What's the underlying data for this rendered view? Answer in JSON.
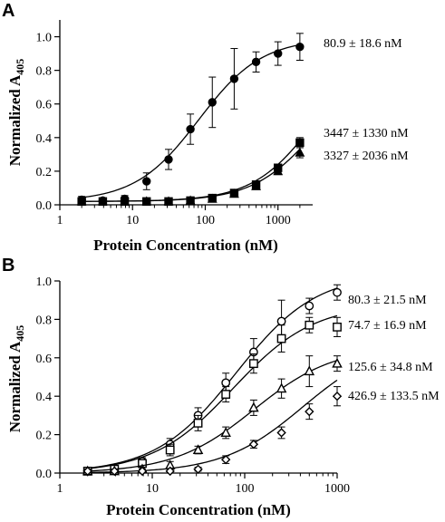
{
  "chart_data": [
    {
      "panel": "A",
      "type": "scatter",
      "xscale": "log",
      "xlim": [
        1,
        3000
      ],
      "ylim": [
        0,
        1.1
      ],
      "xticks": [
        "1",
        "10",
        "100",
        "1000"
      ],
      "yticks": [
        "0.0",
        "0.2",
        "0.4",
        "0.6",
        "0.8",
        "1.0"
      ],
      "xlabel": "Protein Concentration (nM)",
      "ylabel": "Normalized A",
      "ylabel_sub": "405",
      "series": [
        {
          "marker": "filled-circle",
          "x": [
            2,
            3.9,
            7.8,
            15.6,
            31.3,
            62.5,
            125,
            250,
            500,
            1000,
            2000
          ],
          "y": [
            0.03,
            0.025,
            0.035,
            0.14,
            0.27,
            0.45,
            0.61,
            0.75,
            0.85,
            0.9,
            0.94
          ],
          "err": [
            0.02,
            0.01,
            0.02,
            0.05,
            0.06,
            0.09,
            0.15,
            0.18,
            0.06,
            0.07,
            0.08
          ],
          "fit": {
            "kd": 80.9,
            "top": 0.99,
            "bottom": 0.02
          },
          "annotation": "80.9 ± 18.6 nM"
        },
        {
          "marker": "filled-square",
          "x": [
            2,
            3.9,
            7.8,
            15.6,
            31.3,
            62.5,
            125,
            250,
            500,
            1000,
            2000
          ],
          "y": [
            0.02,
            0.02,
            0.02,
            0.02,
            0.02,
            0.025,
            0.04,
            0.07,
            0.12,
            0.22,
            0.37
          ],
          "err": [
            0.01,
            0.01,
            0.01,
            0.01,
            0.01,
            0.01,
            0.01,
            0.01,
            0.015,
            0.02,
            0.03
          ],
          "fit": {
            "kd": 3447,
            "top": 1.0,
            "bottom": 0.02
          },
          "annotation": "3447 ± 1330 nM"
        },
        {
          "marker": "filled-triangle",
          "x": [
            2,
            3.9,
            7.8,
            15.6,
            31.3,
            62.5,
            125,
            250,
            500,
            1000,
            2000
          ],
          "y": [
            0.02,
            0.02,
            0.02,
            0.02,
            0.02,
            0.025,
            0.035,
            0.065,
            0.11,
            0.2,
            0.31
          ],
          "err": [
            0.01,
            0.01,
            0.01,
            0.01,
            0.01,
            0.01,
            0.01,
            0.01,
            0.015,
            0.02,
            0.03
          ],
          "fit": {
            "kd": 3327,
            "top": 0.85,
            "bottom": 0.02
          },
          "annotation": "3327 ± 2036 nM"
        }
      ]
    },
    {
      "panel": "B",
      "type": "scatter",
      "xscale": "log",
      "xlim": [
        1,
        1000
      ],
      "ylim": [
        0,
        1.0
      ],
      "xticks": [
        "1",
        "10",
        "100",
        "1000"
      ],
      "yticks": [
        "0.0",
        "0.2",
        "0.4",
        "0.6",
        "0.8",
        "1.0"
      ],
      "xlabel": "Protein Concentration (nM)",
      "ylabel": "Normalized A",
      "ylabel_sub": "405",
      "series": [
        {
          "marker": "open-circle",
          "x": [
            2,
            3.9,
            7.8,
            15.6,
            31.3,
            62.5,
            125,
            250,
            500,
            1000
          ],
          "y": [
            0.01,
            0.025,
            0.06,
            0.15,
            0.3,
            0.47,
            0.63,
            0.79,
            0.87,
            0.94
          ],
          "err": [
            0.01,
            0.01,
            0.02,
            0.03,
            0.04,
            0.05,
            0.07,
            0.11,
            0.04,
            0.04
          ],
          "fit": {
            "kd": 80.3,
            "top": 1.04,
            "bottom": 0.0
          },
          "annotation": "80.3 ± 21.5 nM"
        },
        {
          "marker": "open-square",
          "x": [
            2,
            3.9,
            7.8,
            15.6,
            31.3,
            62.5,
            125,
            250,
            500,
            1000
          ],
          "y": [
            0.01,
            0.02,
            0.05,
            0.12,
            0.26,
            0.41,
            0.57,
            0.7,
            0.77,
            0.76
          ],
          "err": [
            0.01,
            0.01,
            0.02,
            0.03,
            0.04,
            0.04,
            0.05,
            0.07,
            0.04,
            0.05
          ],
          "fit": {
            "kd": 74.7,
            "top": 0.88,
            "bottom": 0.0
          },
          "annotation": "74.7 ± 16.9 nM"
        },
        {
          "marker": "open-triangle",
          "x": [
            2,
            3.9,
            7.8,
            15.6,
            31.3,
            62.5,
            125,
            250,
            500,
            1000
          ],
          "y": [
            0.01,
            0.01,
            0.02,
            0.04,
            0.12,
            0.21,
            0.34,
            0.44,
            0.53,
            0.57
          ],
          "err": [
            0.01,
            0.01,
            0.01,
            0.02,
            0.02,
            0.03,
            0.04,
            0.05,
            0.08,
            0.04
          ],
          "fit": {
            "kd": 125.6,
            "top": 0.66,
            "bottom": 0.0
          },
          "annotation": "125.6 ± 34.8 nM"
        },
        {
          "marker": "open-diamond",
          "x": [
            2,
            3.9,
            7.8,
            15.6,
            31.3,
            62.5,
            125,
            250,
            500,
            1000
          ],
          "y": [
            0.01,
            0.01,
            0.01,
            0.01,
            0.02,
            0.07,
            0.15,
            0.21,
            0.32,
            0.4
          ],
          "err": [
            0.01,
            0.01,
            0.01,
            0.01,
            0.01,
            0.02,
            0.02,
            0.03,
            0.04,
            0.05
          ],
          "fit": {
            "kd": 426.9,
            "top": 0.69,
            "bottom": 0.0
          },
          "annotation": "426.9 ± 133.5 nM"
        }
      ]
    }
  ]
}
